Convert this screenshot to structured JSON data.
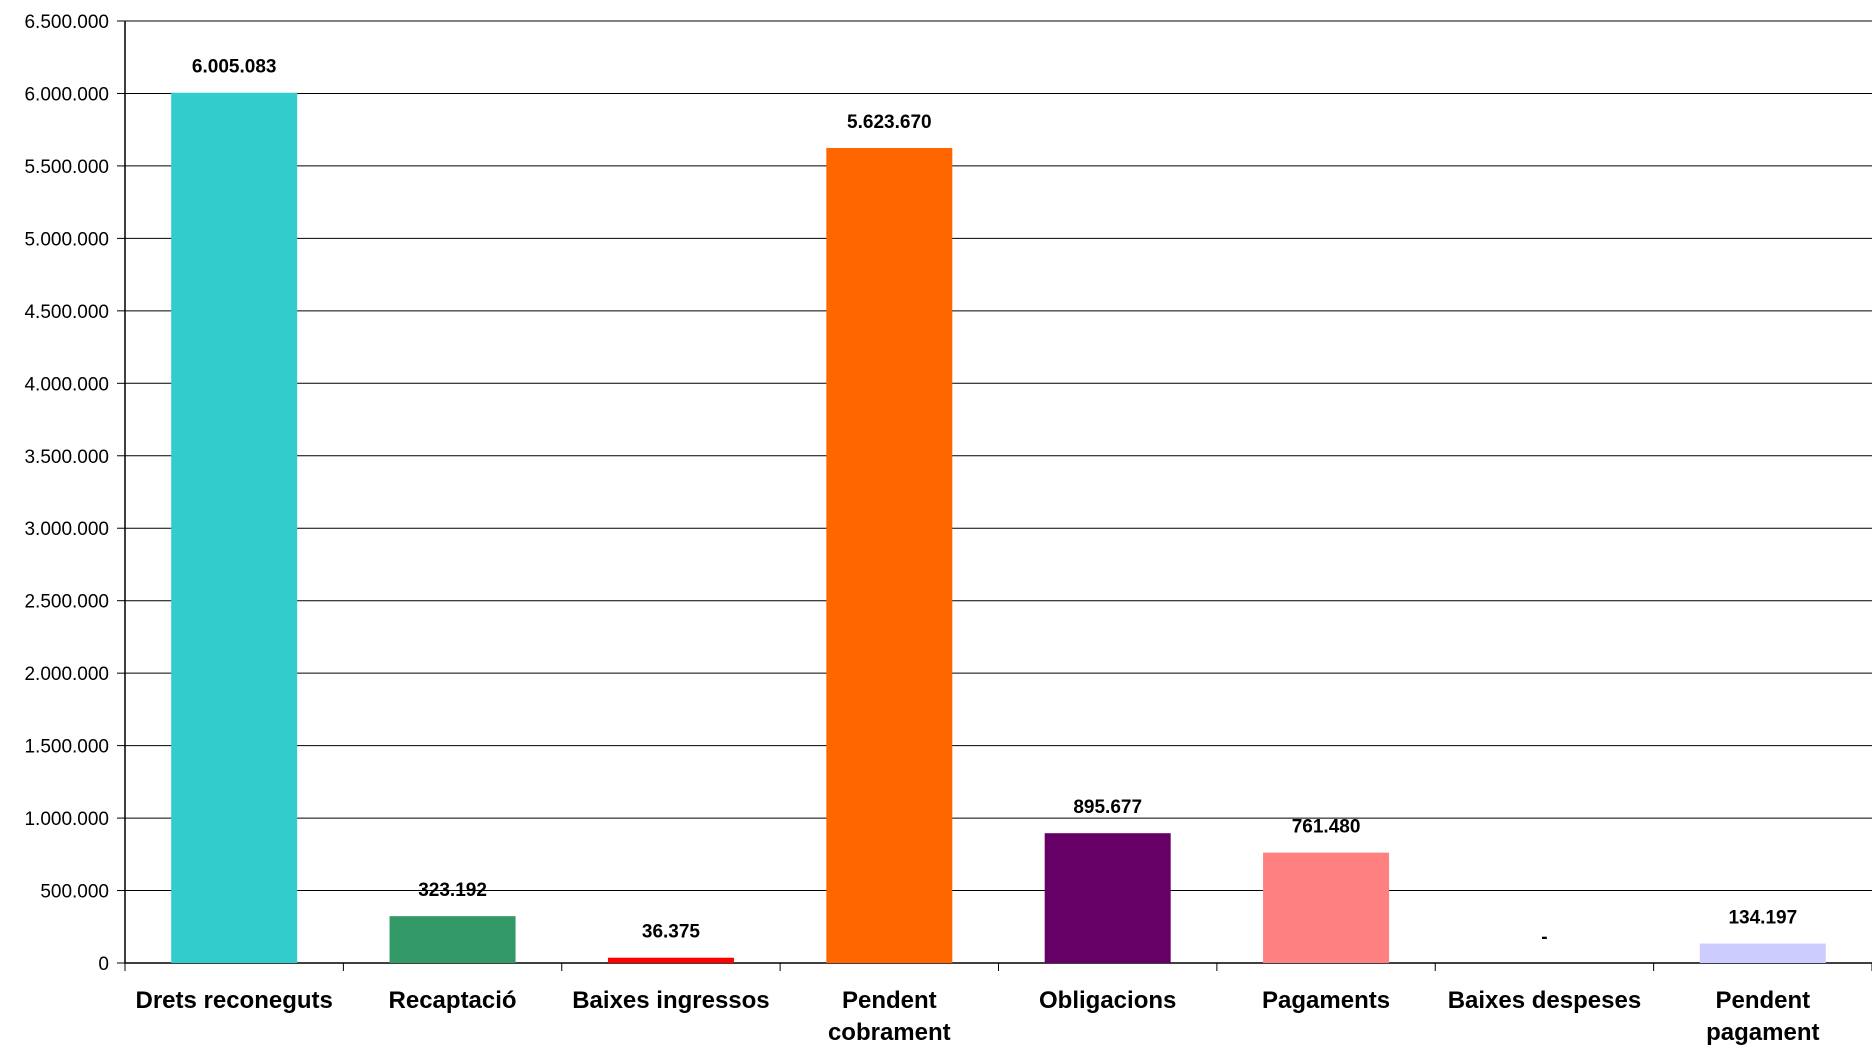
{
  "chart_data": {
    "type": "bar",
    "title": "",
    "xlabel": "",
    "ylabel": "",
    "ylim": [
      0,
      6500000
    ],
    "y_ticks": [
      0,
      500000,
      1000000,
      1500000,
      2000000,
      2500000,
      3000000,
      3500000,
      4000000,
      4500000,
      5000000,
      5500000,
      6000000,
      6500000
    ],
    "y_tick_labels": [
      "0",
      "500.000",
      "1.000.000",
      "1.500.000",
      "2.000.000",
      "2.500.000",
      "3.000.000",
      "3.500.000",
      "4.000.000",
      "4.500.000",
      "5.000.000",
      "5.500.000",
      "6.000.000",
      "6.500.000"
    ],
    "grid": true,
    "legend": "none",
    "categories": [
      [
        "Drets reconeguts"
      ],
      [
        "Recaptació"
      ],
      [
        "Baixes ingressos"
      ],
      [
        "Pendent",
        "cobrament"
      ],
      [
        "Obligacions"
      ],
      [
        "Pagaments"
      ],
      [
        "Baixes despeses"
      ],
      [
        "Pendent",
        "pagament"
      ]
    ],
    "values": [
      6005083,
      323192,
      36375,
      5623670,
      895677,
      761480,
      0,
      134197
    ],
    "data_labels": [
      "6.005.083",
      "323.192",
      "36.375",
      "5.623.670",
      "895.677",
      "761.480",
      "-",
      "134.197"
    ],
    "colors": [
      "#33CCCC",
      "#339966",
      "#FF0000",
      "#FF6600",
      "#660066",
      "#FF8080",
      "#FFFFFF",
      "#CCCCFF"
    ]
  }
}
